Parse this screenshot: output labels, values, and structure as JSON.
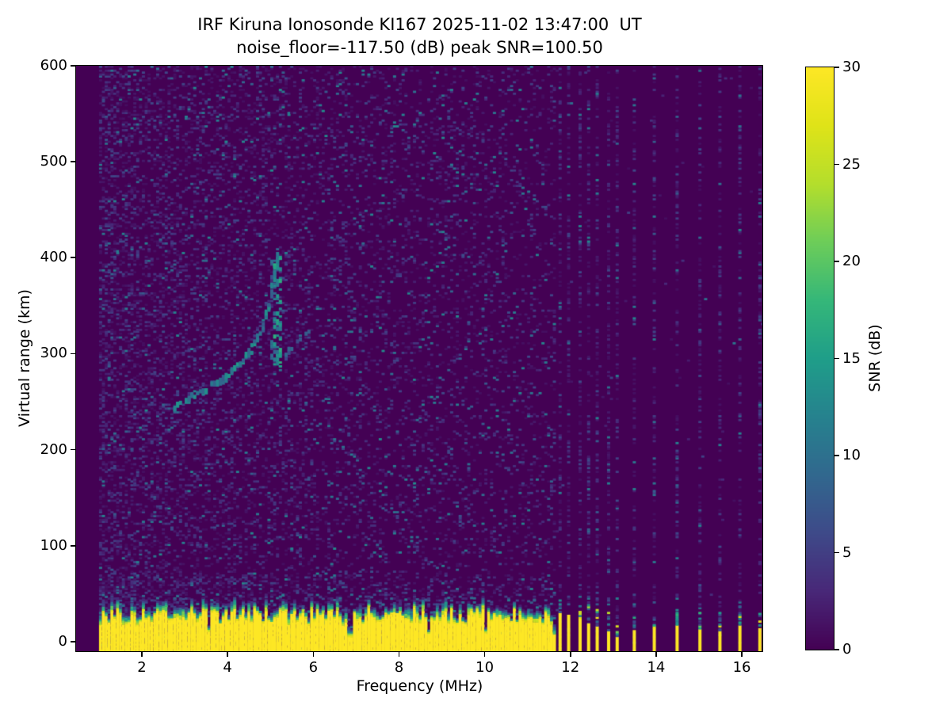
{
  "chart_data": {
    "type": "heatmap",
    "title": "IRF Kiruna Ionosonde KI167 2025-11-02 13:47:00  UT",
    "subtitle": "noise_floor=-117.50 (dB) peak SNR=100.50",
    "station": "KI167",
    "timestamp_ut": "2025-11-02 13:47:00",
    "noise_floor_db": -117.5,
    "peak_snr_db": 100.5,
    "xlabel": "Frequency (MHz)",
    "ylabel": "Virtual range (km)",
    "colorbar_label": "SNR (dB)",
    "xlim": [
      0.465,
      16.48
    ],
    "ylim": [
      -10,
      600
    ],
    "xticks": [
      2,
      4,
      6,
      8,
      10,
      12,
      14,
      16
    ],
    "yticks": [
      0,
      100,
      200,
      300,
      400,
      500,
      600
    ],
    "cticks": [
      0,
      5,
      10,
      15,
      20,
      25,
      30
    ],
    "clim": [
      0,
      30
    ],
    "grid": false,
    "legend": "colorbar-right",
    "colormap": "viridis",
    "colormap_stops": [
      [
        0.0,
        "#440154"
      ],
      [
        0.1,
        "#482878"
      ],
      [
        0.2,
        "#3e4a89"
      ],
      [
        0.3,
        "#31688e"
      ],
      [
        0.4,
        "#26828e"
      ],
      [
        0.5,
        "#1f9e89"
      ],
      [
        0.6,
        "#35b779"
      ],
      [
        0.7,
        "#6dcd59"
      ],
      [
        0.8,
        "#b4de2c"
      ],
      [
        0.9,
        "#dfe318"
      ],
      [
        1.0,
        "#fde725"
      ]
    ],
    "sweep_start_mhz": 1.0,
    "sweep_end_mhz": 16.46,
    "freq_step_mhz": 0.0666,
    "range_step_km": 2,
    "continuous_band_end_mhz": 11.62,
    "ground_clutter": {
      "max_snr_db": 30,
      "solid_top_km_min": 17,
      "solid_top_km_max": 34,
      "transition_km": 11,
      "notch_prob": 0.05,
      "notch_top_km": 6,
      "elevated_noise_below_km": 70
    },
    "sparse_channels": [
      {
        "f": 11.73,
        "yellow_km": 30,
        "teal_km": 44
      },
      {
        "f": 11.95,
        "yellow_km": 28,
        "teal_km": 40
      },
      {
        "f": 12.17,
        "yellow_km": 24,
        "teal_km": 38
      },
      {
        "f": 12.4,
        "yellow_km": 19,
        "teal_km": 40
      },
      {
        "f": 12.62,
        "yellow_km": 16,
        "teal_km": 34
      },
      {
        "f": 12.84,
        "yellow_km": 11,
        "teal_km": 30
      },
      {
        "f": 13.06,
        "yellow_km": 5,
        "teal_km": 18
      },
      {
        "f": 13.45,
        "yellow_km": 12,
        "teal_km": 26
      },
      {
        "f": 13.95,
        "yellow_km": 14,
        "teal_km": 28
      },
      {
        "f": 14.47,
        "yellow_km": 17,
        "teal_km": 32
      },
      {
        "f": 14.96,
        "yellow_km": 13,
        "teal_km": 30
      },
      {
        "f": 15.46,
        "yellow_km": 11,
        "teal_km": 34
      },
      {
        "f": 15.94,
        "yellow_km": 17,
        "teal_km": 38
      },
      {
        "f": 16.38,
        "yellow_km": 14,
        "teal_km": 30
      }
    ],
    "echo_trace_o_mode": [
      [
        2.72,
        244
      ],
      [
        2.9,
        249
      ],
      [
        3.1,
        254
      ],
      [
        3.3,
        259
      ],
      [
        3.5,
        264
      ],
      [
        3.7,
        269
      ],
      [
        3.9,
        275
      ],
      [
        4.1,
        282
      ],
      [
        4.3,
        291
      ],
      [
        4.5,
        302
      ],
      [
        4.65,
        315
      ],
      [
        4.8,
        330
      ],
      [
        4.92,
        348
      ],
      [
        5.02,
        368
      ],
      [
        5.1,
        388
      ],
      [
        5.15,
        402
      ]
    ],
    "echo_trace_x_mode": [
      [
        5.3,
        296
      ],
      [
        5.45,
        305
      ],
      [
        5.6,
        313
      ],
      [
        5.74,
        320
      ],
      [
        5.87,
        328
      ]
    ],
    "f2_cusp_spread": {
      "f": [
        4.98,
        5.24
      ],
      "km": [
        284,
        404
      ]
    },
    "trace_snr_db": 11,
    "noise": {
      "continuous_density": [
        [
          1.0,
          0.4
        ],
        [
          1.4,
          0.3
        ],
        [
          2.0,
          0.27
        ],
        [
          3.0,
          0.23
        ],
        [
          5.0,
          0.18
        ],
        [
          7.0,
          0.14
        ],
        [
          9.0,
          0.12
        ],
        [
          11.62,
          0.11
        ]
      ],
      "teal_speckle_prob": 0.012,
      "sparse_column_density": 0.3,
      "off_channel_density": 0.003,
      "background_db_range": [
        1,
        6
      ]
    }
  }
}
